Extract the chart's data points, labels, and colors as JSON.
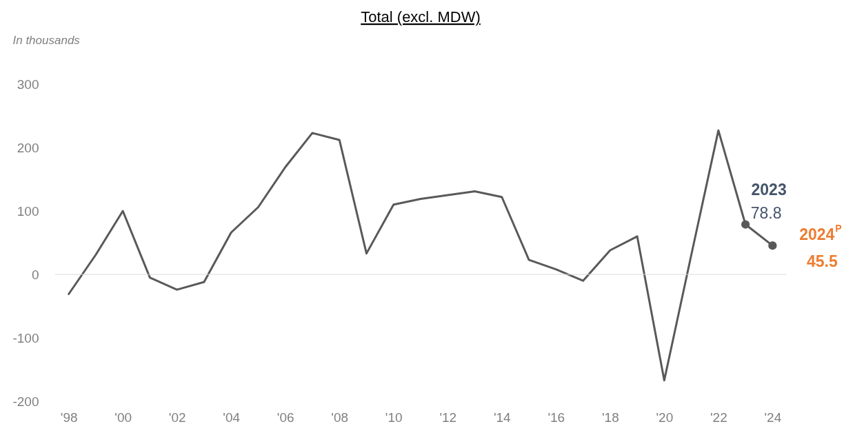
{
  "chart_data": {
    "type": "line",
    "title": "Total (excl. MDW)",
    "ylabel": "In thousands",
    "x": [
      1998,
      1999,
      2000,
      2001,
      2002,
      2003,
      2004,
      2005,
      2006,
      2007,
      2008,
      2009,
      2010,
      2011,
      2012,
      2013,
      2014,
      2015,
      2016,
      2017,
      2018,
      2019,
      2020,
      2021,
      2022,
      2023,
      2024
    ],
    "series": [
      {
        "color": "#595959",
        "values": [
          -31,
          31,
          100,
          -5,
          -24,
          -12,
          66,
          106,
          169,
          223,
          212,
          33,
          110,
          119,
          125,
          131,
          122,
          23,
          8,
          -10,
          38,
          60,
          -167,
          31,
          227,
          78.8,
          45.5
        ]
      },
      {
        "type": "scatter",
        "color": "#595959",
        "marker": "circle",
        "x": [
          2023,
          2024
        ],
        "values": [
          78.8,
          45.5
        ],
        "value_labels": [
          "78.8",
          "45.5"
        ]
      }
    ],
    "xlim": [
      1997.5,
      2024.5
    ],
    "xticks": [
      {
        "value": 1998,
        "label": "'98"
      },
      {
        "value": 2000,
        "label": "'00"
      },
      {
        "value": 2002,
        "label": "'02"
      },
      {
        "value": 2004,
        "label": "'04"
      },
      {
        "value": 2006,
        "label": "'06"
      },
      {
        "value": 2008,
        "label": "'08"
      },
      {
        "value": 2010,
        "label": "'10"
      },
      {
        "value": 2012,
        "label": "'12"
      },
      {
        "value": 2014,
        "label": "'14"
      },
      {
        "value": 2016,
        "label": "'16"
      },
      {
        "value": 2018,
        "label": "'18"
      },
      {
        "value": 2020,
        "label": "'20"
      },
      {
        "value": 2022,
        "label": "'22"
      },
      {
        "value": 2024,
        "label": "'24"
      }
    ],
    "ylim": [
      -200,
      300
    ],
    "yticks": [
      -200,
      -100,
      0,
      100,
      200,
      300
    ],
    "ref_lines": [
      {
        "axis": "y",
        "value": 0,
        "color": "#d9d9d9"
      }
    ],
    "annotations": [
      {
        "text": "2023",
        "x": 2023,
        "y": 78.8
      },
      {
        "text": "2024$^{P}$",
        "x": 2024,
        "y": 45.5
      }
    ],
    "marker": "none",
    "line_style": "solid"
  }
}
